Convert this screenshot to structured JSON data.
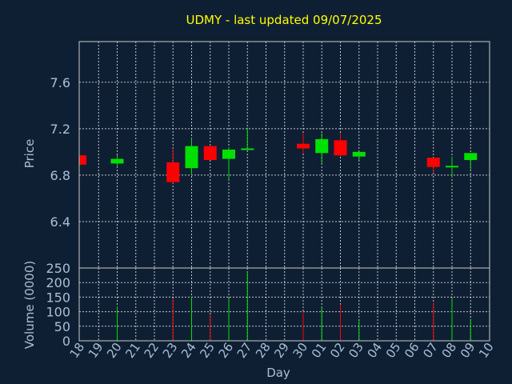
{
  "chart_data": {
    "type": "candlestick",
    "title": "UDMY - last updated 09/07/2025",
    "xlabel": "Day",
    "colors": {
      "background": "#0f1f33",
      "title": "#ffff00",
      "axis_text": "#a9bfd6",
      "up": "#00e000",
      "down": "#ff0000",
      "frame": "#c8c8c8",
      "grid": "#ffffff"
    },
    "x_tick_labels": [
      "18",
      "19",
      "20",
      "21",
      "22",
      "23",
      "24",
      "25",
      "26",
      "27",
      "28",
      "29",
      "30",
      "01",
      "02",
      "03",
      "04",
      "05",
      "06",
      "07",
      "08",
      "09",
      "10"
    ],
    "price_panel": {
      "ylabel": "Price",
      "ylim": [
        6.0,
        7.95
      ],
      "yticks": [
        6.4,
        6.8,
        7.2,
        7.6
      ],
      "ytick_labels": [
        "6.4",
        "6.8",
        "7.2",
        "7.6"
      ],
      "grid": true
    },
    "volume_panel": {
      "ylabel": "Volume (0000)",
      "ylim": [
        0,
        250
      ],
      "yticks": [
        0,
        50,
        100,
        150,
        200,
        250
      ],
      "ytick_labels": [
        "0",
        "50",
        "100",
        "150",
        "200",
        "250"
      ],
      "grid": true
    },
    "candles": [
      {
        "day": "18",
        "open": 6.97,
        "high": 6.97,
        "low": 6.89,
        "close": 6.89,
        "volume": 0
      },
      {
        "day": "20",
        "open": 6.9,
        "high": 6.97,
        "low": 6.87,
        "close": 6.94,
        "volume": 118
      },
      {
        "day": "23",
        "open": 6.91,
        "high": 7.03,
        "low": 6.73,
        "close": 6.74,
        "volume": 145
      },
      {
        "day": "24",
        "open": 6.86,
        "high": 7.12,
        "low": 6.8,
        "close": 7.05,
        "volume": 152
      },
      {
        "day": "25",
        "open": 7.05,
        "high": 7.05,
        "low": 6.93,
        "close": 6.93,
        "volume": 90
      },
      {
        "day": "26",
        "open": 6.94,
        "high": 7.04,
        "low": 6.76,
        "close": 7.02,
        "volume": 145
      },
      {
        "day": "27",
        "open": 7.02,
        "high": 7.21,
        "low": 7.02,
        "close": 7.03,
        "volume": 238
      },
      {
        "day": "30",
        "open": 7.07,
        "high": 7.16,
        "low": 6.99,
        "close": 7.03,
        "volume": 100
      },
      {
        "day": "01",
        "open": 6.99,
        "high": 7.16,
        "low": 6.9,
        "close": 7.11,
        "volume": 118
      },
      {
        "day": "02",
        "open": 7.1,
        "high": 7.16,
        "low": 6.96,
        "close": 6.97,
        "volume": 125
      },
      {
        "day": "03",
        "open": 6.96,
        "high": 7.0,
        "low": 6.93,
        "close": 7.0,
        "volume": 68
      },
      {
        "day": "07",
        "open": 6.95,
        "high": 6.95,
        "low": 6.82,
        "close": 6.87,
        "volume": 130
      },
      {
        "day": "08",
        "open": 6.87,
        "high": 6.96,
        "low": 6.78,
        "close": 6.88,
        "volume": 148
      },
      {
        "day": "09",
        "open": 6.93,
        "high": 6.99,
        "low": 6.85,
        "close": 6.99,
        "volume": 75
      }
    ]
  }
}
